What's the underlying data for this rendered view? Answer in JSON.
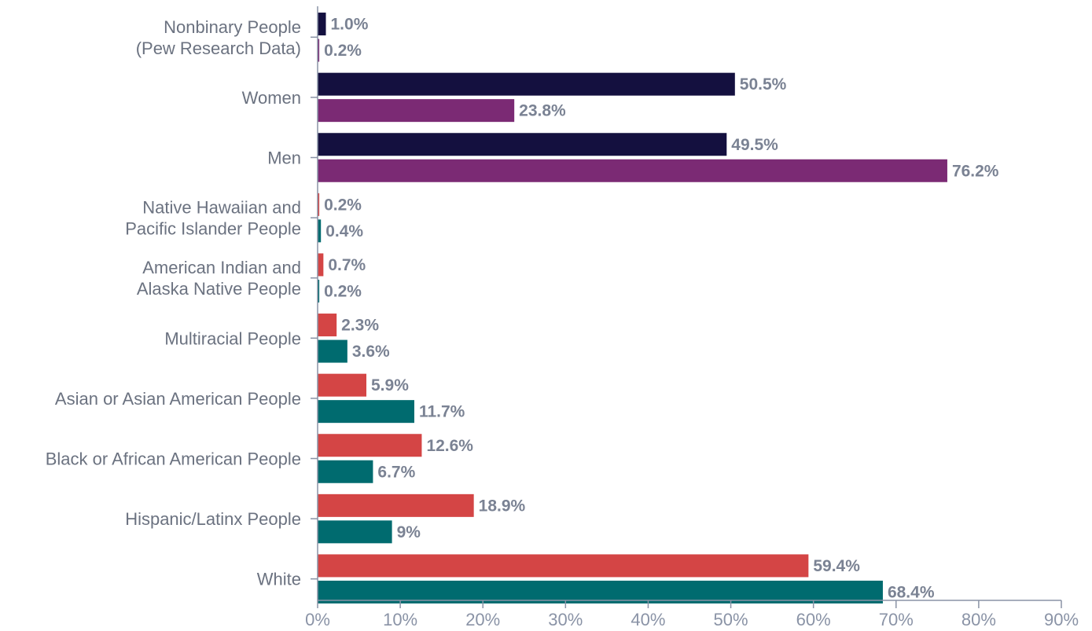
{
  "chart_data": {
    "type": "bar",
    "orientation": "horizontal",
    "title": "",
    "xlabel": "",
    "ylabel": "",
    "xlim": [
      0,
      90
    ],
    "x_ticks": [
      "0%",
      "10%",
      "20%",
      "30%",
      "40%",
      "50%",
      "60%",
      "70%",
      "80%",
      "90%"
    ],
    "grid": false,
    "legend": "none",
    "categories": [
      {
        "label_lines": [
          "Nonbinary People",
          "(Pew Research Data)"
        ],
        "bars": [
          {
            "value": 1.0,
            "label": "1.0%",
            "color": "#14103f"
          },
          {
            "value": 0.2,
            "label": "0.2%",
            "color": "#7b2a74"
          }
        ]
      },
      {
        "label_lines": [
          "Women"
        ],
        "bars": [
          {
            "value": 50.5,
            "label": "50.5%",
            "color": "#14103f"
          },
          {
            "value": 23.8,
            "label": "23.8%",
            "color": "#7b2a74"
          }
        ]
      },
      {
        "label_lines": [
          "Men"
        ],
        "bars": [
          {
            "value": 49.5,
            "label": "49.5%",
            "color": "#14103f"
          },
          {
            "value": 76.2,
            "label": "76.2%",
            "color": "#7b2a74"
          }
        ]
      },
      {
        "label_lines": [
          "Native Hawaiian and",
          "Pacific Islander People"
        ],
        "bars": [
          {
            "value": 0.2,
            "label": "0.2%",
            "color": "#d44545"
          },
          {
            "value": 0.4,
            "label": "0.4%",
            "color": "#006b6f"
          }
        ]
      },
      {
        "label_lines": [
          "American Indian and",
          "Alaska Native People"
        ],
        "bars": [
          {
            "value": 0.7,
            "label": "0.7%",
            "color": "#d44545"
          },
          {
            "value": 0.2,
            "label": "0.2%",
            "color": "#006b6f"
          }
        ]
      },
      {
        "label_lines": [
          "Multiracial People"
        ],
        "bars": [
          {
            "value": 2.3,
            "label": "2.3%",
            "color": "#d44545"
          },
          {
            "value": 3.6,
            "label": "3.6%",
            "color": "#006b6f"
          }
        ]
      },
      {
        "label_lines": [
          "Asian or Asian American People"
        ],
        "bars": [
          {
            "value": 5.9,
            "label": "5.9%",
            "color": "#d44545"
          },
          {
            "value": 11.7,
            "label": "11.7%",
            "color": "#006b6f"
          }
        ]
      },
      {
        "label_lines": [
          "Black or African American People"
        ],
        "bars": [
          {
            "value": 12.6,
            "label": "12.6%",
            "color": "#d44545"
          },
          {
            "value": 6.7,
            "label": "6.7%",
            "color": "#006b6f"
          }
        ]
      },
      {
        "label_lines": [
          "Hispanic/Latinx People"
        ],
        "bars": [
          {
            "value": 18.9,
            "label": "18.9%",
            "color": "#d44545"
          },
          {
            "value": 9,
            "label": "9%",
            "color": "#006b6f"
          }
        ]
      },
      {
        "label_lines": [
          "White"
        ],
        "bars": [
          {
            "value": 59.4,
            "label": "59.4%",
            "color": "#d44545"
          },
          {
            "value": 68.4,
            "label": "68.4%",
            "color": "#006b6f"
          }
        ]
      }
    ]
  }
}
